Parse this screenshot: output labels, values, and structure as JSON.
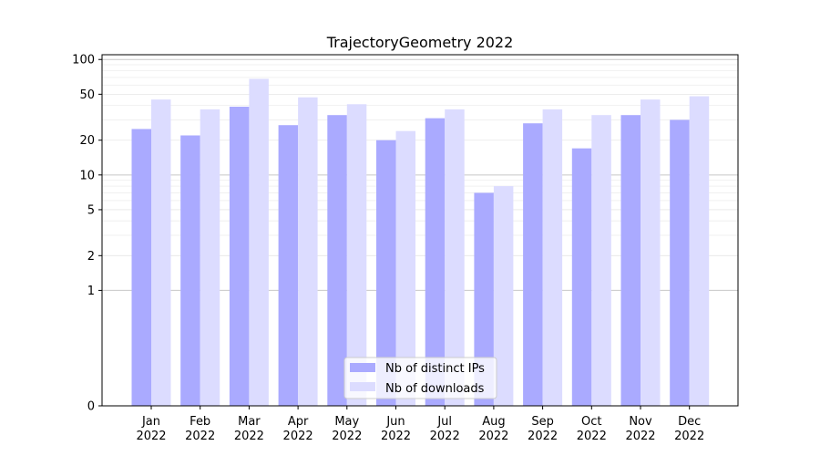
{
  "chart_data": {
    "type": "bar",
    "title": "TrajectoryGeometry 2022",
    "xlabel": "",
    "ylabel": "",
    "y_scale": "symlog",
    "ylim": [
      0,
      110
    ],
    "yticks": [
      0,
      1,
      2,
      5,
      10,
      20,
      50,
      100
    ],
    "grid": "horizontal",
    "legend_position": "lower center",
    "categories": [
      "Jan\n2022",
      "Feb\n2022",
      "Mar\n2022",
      "Apr\n2022",
      "May\n2022",
      "Jun\n2022",
      "Jul\n2022",
      "Aug\n2022",
      "Sep\n2022",
      "Oct\n2022",
      "Nov\n2022",
      "Dec\n2022"
    ],
    "series": [
      {
        "name": "Nb of distinct IPs",
        "color": "#aaaaff",
        "values": [
          25,
          22,
          39,
          27,
          33,
          20,
          31,
          7,
          28,
          17,
          33,
          30
        ]
      },
      {
        "name": "Nb of downloads",
        "color": "#dcdcff",
        "values": [
          45,
          37,
          68,
          47,
          41,
          24,
          37,
          8,
          37,
          33,
          45,
          48
        ]
      }
    ]
  }
}
